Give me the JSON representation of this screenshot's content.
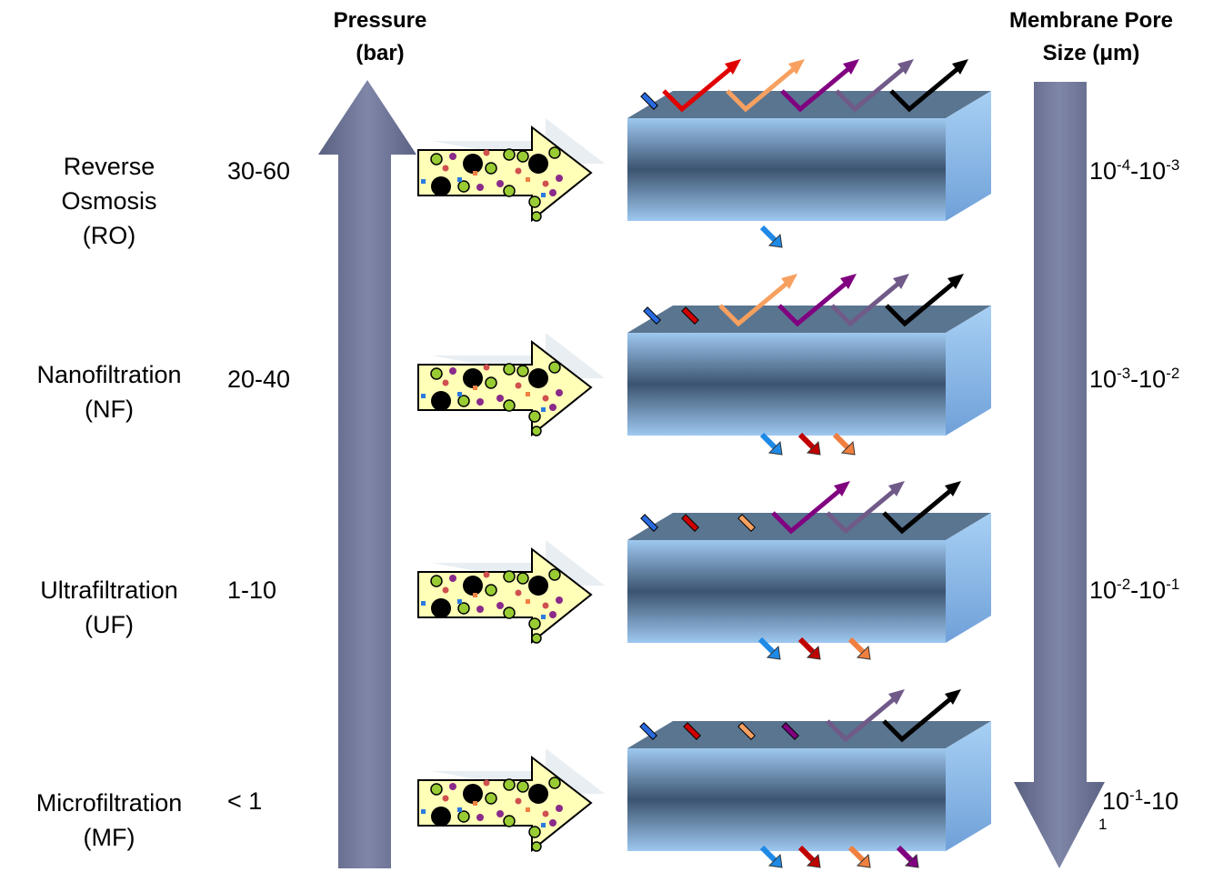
{
  "header": {
    "pressure": [
      "Pressure",
      "(bar)"
    ],
    "pore_size": [
      "Membrane Pore",
      "Size (μm)"
    ]
  },
  "rows": [
    {
      "name": [
        "Reverse",
        "Osmosis",
        "(RO)"
      ],
      "pressure": "30-60",
      "pore_size": [
        "10",
        "-4",
        "-10",
        "-3"
      ]
    },
    {
      "name": [
        "Nanofiltration",
        "(NF)"
      ],
      "pressure": "20-40",
      "pore_size": [
        "10",
        "-3",
        "-10",
        "-2"
      ]
    },
    {
      "name": [
        "Ultrafiltration",
        "(UF)"
      ],
      "pressure": "1-10",
      "pore_size": [
        "10",
        "-2",
        "-10",
        "-1"
      ]
    },
    {
      "name": [
        "Microfiltration",
        "(MF)"
      ],
      "pressure": "< 1",
      "pore_size": [
        "10",
        "-1",
        "-10"
      ],
      "pore_size_wrap": "1"
    }
  ]
}
